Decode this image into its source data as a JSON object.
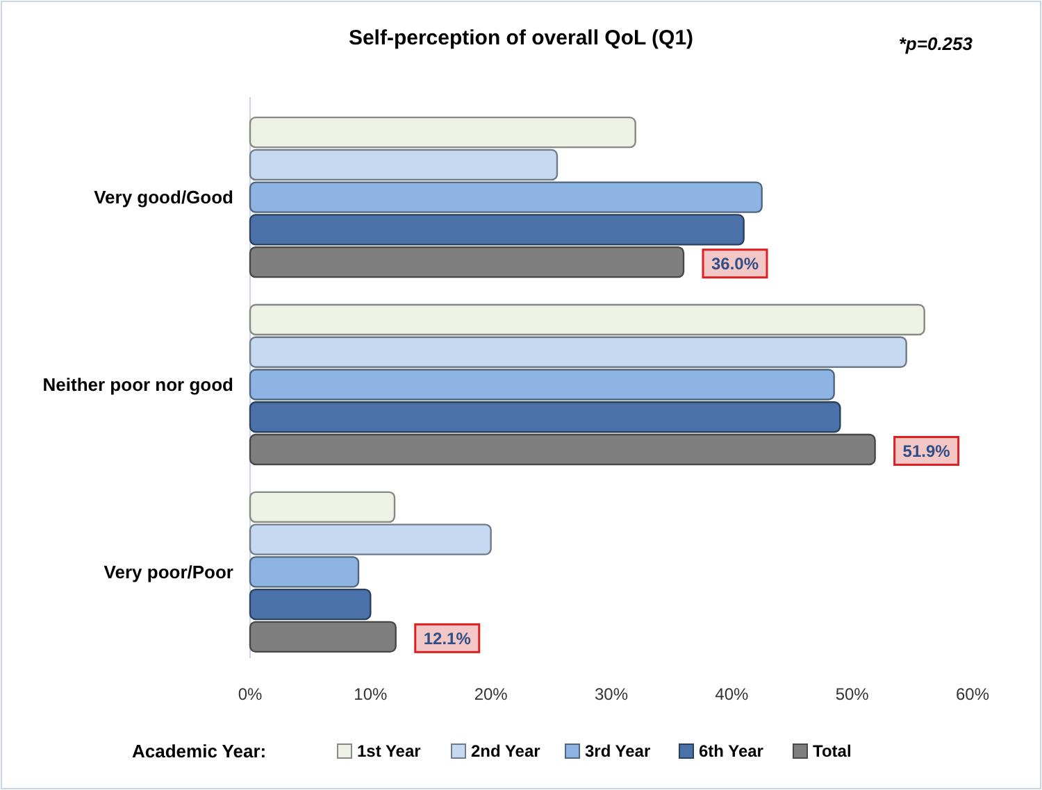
{
  "chart_data": {
    "type": "bar",
    "orientation": "horizontal",
    "title": "Self-perception of overall QoL (Q1)",
    "annotations": [
      "*p=0.253"
    ],
    "legend_title": "Academic Year:",
    "legend": "bottom",
    "grid": false,
    "categories": [
      "Very good/Good",
      "Neither poor nor good",
      "Very poor/Poor"
    ],
    "xlim": [
      0,
      60
    ],
    "xticks": [
      {
        "value": 0,
        "label": "0%"
      },
      {
        "value": 10,
        "label": "10%"
      },
      {
        "value": 20,
        "label": "20%"
      },
      {
        "value": 30,
        "label": "30%"
      },
      {
        "value": 40,
        "label": "40%"
      },
      {
        "value": 50,
        "label": "50%"
      },
      {
        "value": 60,
        "label": "60%"
      }
    ],
    "series": [
      {
        "name": "1st Year",
        "color": "#eef2e6",
        "values": [
          32,
          56,
          12
        ]
      },
      {
        "name": "2nd Year",
        "color": "#c5d9f1",
        "values": [
          25.5,
          54.5,
          20
        ]
      },
      {
        "name": "3rd Year",
        "color": "#8db4e2",
        "values": [
          42.5,
          48.5,
          9
        ]
      },
      {
        "name": "6th Year",
        "color": "#4a72a8",
        "values": [
          41,
          49,
          10
        ]
      },
      {
        "name": "Total",
        "color": "#7f7f7f",
        "values": [
          36.0,
          51.9,
          12.1
        ],
        "value_labels": [
          "36.0%",
          "51.9%",
          "12.1%"
        ]
      }
    ]
  }
}
